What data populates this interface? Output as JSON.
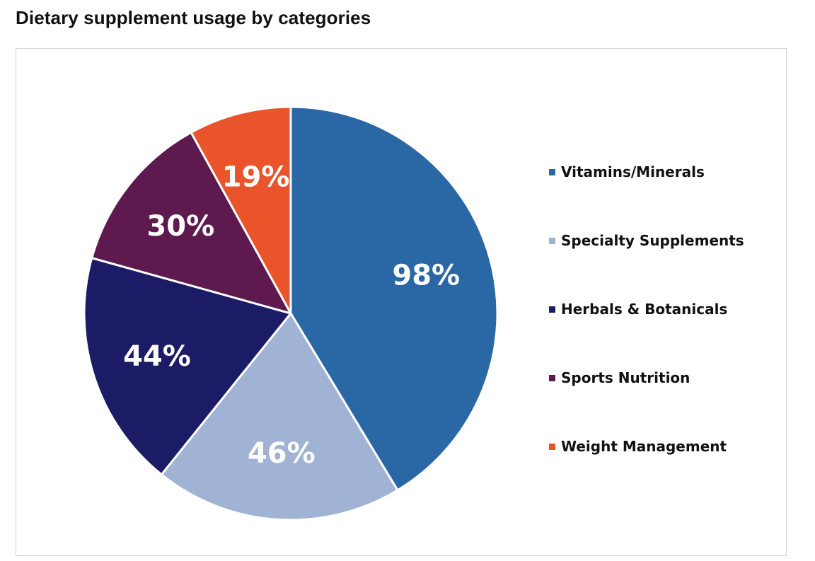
{
  "page": {
    "title": "Dietary supplement usage by categories"
  },
  "chart_data": {
    "type": "pie",
    "title": "Dietary supplement usage by categories",
    "categories": [
      "Vitamins/Minerals",
      "Specialty Supplements",
      "Herbals & Botanicals",
      "Sports Nutrition",
      "Weight Management"
    ],
    "values": [
      98,
      46,
      44,
      30,
      19
    ],
    "labels": [
      "98%",
      "46%",
      "44%",
      "30%",
      "19%"
    ],
    "colors": [
      "#2A67A5",
      "#A1B3D4",
      "#1B1B66",
      "#5E1A4E",
      "#EA542A"
    ],
    "legend_position": "right",
    "start_angle_deg": 0,
    "direction": "clockwise"
  }
}
